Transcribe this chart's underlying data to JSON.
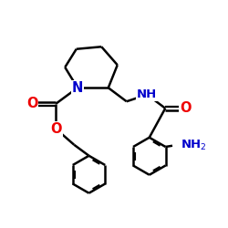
{
  "background": "#ffffff",
  "bond_color": "#000000",
  "N_color": "#0000cc",
  "O_color": "#ee0000",
  "bond_width": 1.8,
  "figsize": [
    2.5,
    2.5
  ],
  "dpi": 100,
  "xlim": [
    0,
    10
  ],
  "ylim": [
    0,
    10
  ]
}
